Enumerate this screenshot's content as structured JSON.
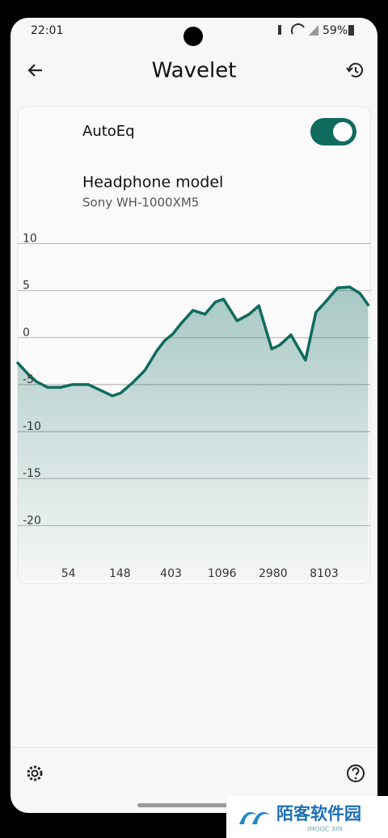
{
  "status_bar": {
    "time": "22:01",
    "battery": "59%"
  },
  "header": {
    "title": "Wavelet"
  },
  "card": {
    "autoeq_label": "AutoEq",
    "model_heading": "Headphone model",
    "model_name": "Sony WH-1000XM5"
  },
  "chart_data": {
    "type": "line",
    "log_x": true,
    "grid": true,
    "color": "#0f6b5e",
    "x": [
      20,
      25,
      29,
      36,
      46,
      58,
      80,
      101,
      128,
      150,
      190,
      241,
      305,
      357,
      418,
      490,
      620,
      784,
      962,
      1127,
      1472,
      1865,
      2252,
      2898,
      3394,
      4230,
      5620,
      6897,
      8320,
      10540,
      13360,
      16400,
      19200
    ],
    "values": [
      -2.7,
      -4.0,
      -4.7,
      -5.3,
      -5.3,
      -5.0,
      -5.0,
      -5.6,
      -6.2,
      -5.9,
      -4.8,
      -3.5,
      -1.4,
      -0.3,
      0.4,
      1.5,
      2.9,
      2.5,
      3.8,
      4.1,
      1.8,
      2.5,
      3.4,
      -1.2,
      -0.8,
      0.3,
      -2.4,
      2.7,
      3.8,
      5.3,
      5.4,
      4.7,
      3.5
    ],
    "xlim": [
      20,
      20000
    ],
    "xticks": [
      54,
      148,
      403,
      1096,
      2980,
      8103
    ],
    "ylim": [
      -26,
      11
    ],
    "yticks": [
      10,
      5,
      0,
      -5,
      -10,
      -15,
      -20
    ]
  },
  "watermark": {
    "name": "陌客软件园",
    "sub": "IMOOC XIN"
  }
}
